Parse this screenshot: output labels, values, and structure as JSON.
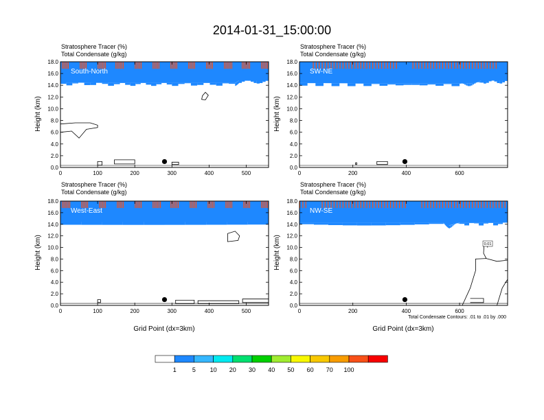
{
  "title": "2014-01-31_15:00:00",
  "panel_header_line1": "Stratosphere Tracer   (%)",
  "panel_header_line2": "Total Condensate   (g/kg)",
  "ylabel": "Height (km)",
  "xlabel": "Grid Point (dx=3km)",
  "contour_note": "Total Condensate Contours: .01 to .01 by .000",
  "contour_label": "0.01",
  "colors": {
    "palette": [
      "#ffffff",
      "#1e88ff",
      "#35b7ff",
      "#00eaf0",
      "#00e070",
      "#00d000",
      "#a0ec30",
      "#f8f800",
      "#f8c800",
      "#f89c00",
      "#f85018",
      "#f80000"
    ],
    "outline": "#000000",
    "background": "#ffffff"
  },
  "colorbar": {
    "levels": [
      "1",
      "5",
      "10",
      "20",
      "30",
      "40",
      "50",
      "60",
      "70",
      "100"
    ]
  },
  "chart_data": [
    {
      "type": "heatmap",
      "name": "South-North",
      "xlim": [
        0,
        560
      ],
      "ylim": [
        0.0,
        18.0
      ],
      "xticks": [
        "0",
        "100",
        "200",
        "300",
        "400",
        "500"
      ],
      "yticks": [
        "0.0",
        "2.0",
        "4.0",
        "6.0",
        "8.0",
        "10.0",
        "12.0",
        "14.0",
        "16.0",
        "18.0"
      ],
      "tracer_boundary_km": [
        [
          0,
          15.7
        ],
        [
          160,
          15.6
        ],
        [
          300,
          15.6
        ],
        [
          470,
          15.6
        ],
        [
          480,
          16.0
        ],
        [
          560,
          16.0
        ]
      ],
      "marker": {
        "x": 280,
        "y": 1.0
      },
      "contours": [
        {
          "points": [
            [
              0,
              6.0
            ],
            [
              30,
              6.2
            ],
            [
              50,
              5.0
            ],
            [
              70,
              6.5
            ],
            [
              100,
              6.8
            ],
            [
              100,
              7.2
            ],
            [
              80,
              7.6
            ],
            [
              40,
              7.6
            ],
            [
              0,
              7.4
            ]
          ]
        },
        {
          "points": [
            [
              380,
              11.6
            ],
            [
              390,
              11.5
            ],
            [
              398,
              12.3
            ],
            [
              390,
              12.8
            ],
            [
              382,
              12.2
            ]
          ]
        },
        {
          "points": [
            [
              100,
              0.4
            ],
            [
              112,
              0.4
            ],
            [
              112,
              1.0
            ],
            [
              100,
              1.0
            ]
          ]
        },
        {
          "points": [
            [
              145,
              0.6
            ],
            [
              200,
              0.6
            ],
            [
              200,
              1.3
            ],
            [
              145,
              1.3
            ]
          ]
        },
        {
          "points": [
            [
              300,
              0.5
            ],
            [
              318,
              0.5
            ],
            [
              318,
              0.9
            ],
            [
              300,
              0.9
            ]
          ]
        }
      ]
    },
    {
      "type": "heatmap",
      "name": "SW-NE",
      "xlim": [
        0,
        780
      ],
      "ylim": [
        0.0,
        18.0
      ],
      "xticks": [
        "0",
        "200",
        "400",
        "600"
      ],
      "yticks": [
        "0.0",
        "2.0",
        "4.0",
        "6.0",
        "8.0",
        "10.0",
        "12.0",
        "14.0",
        "16.0",
        "18.0"
      ],
      "tracer_boundary_km": [
        [
          0,
          15.6
        ],
        [
          300,
          15.5
        ],
        [
          600,
          15.5
        ],
        [
          660,
          15.6
        ],
        [
          680,
          16.0
        ],
        [
          780,
          16.0
        ]
      ],
      "marker": {
        "x": 395,
        "y": 1.0
      },
      "contours": [
        {
          "points": [
            [
              290,
              0.5
            ],
            [
              330,
              0.5
            ],
            [
              330,
              1.0
            ],
            [
              290,
              1.0
            ]
          ]
        },
        {
          "points": [
            [
              210,
              0.5
            ],
            [
              215,
              0.5
            ],
            [
              215,
              0.8
            ],
            [
              210,
              0.8
            ]
          ]
        }
      ]
    },
    {
      "type": "heatmap",
      "name": "West-East",
      "xlim": [
        0,
        560
      ],
      "ylim": [
        0.0,
        18.0
      ],
      "xticks": [
        "0",
        "100",
        "200",
        "300",
        "400",
        "500"
      ],
      "yticks": [
        "0.0",
        "2.0",
        "4.0",
        "6.0",
        "8.0",
        "10.0",
        "12.0",
        "14.0",
        "16.0",
        "18.0"
      ],
      "tracer_boundary_km": [
        [
          0,
          15.6
        ],
        [
          560,
          15.6
        ]
      ],
      "marker": {
        "x": 280,
        "y": 1.0
      },
      "contours": [
        {
          "points": [
            [
              450,
              11.0
            ],
            [
              478,
              11.2
            ],
            [
              482,
              12.0
            ],
            [
              470,
              12.8
            ],
            [
              450,
              12.4
            ]
          ]
        },
        {
          "points": [
            [
              100,
              0.5
            ],
            [
              108,
              0.5
            ],
            [
              108,
              1.0
            ],
            [
              100,
              1.0
            ]
          ]
        },
        {
          "points": [
            [
              310,
              0.3
            ],
            [
              360,
              0.3
            ],
            [
              360,
              0.9
            ],
            [
              310,
              0.9
            ]
          ]
        },
        {
          "points": [
            [
              370,
              0.3
            ],
            [
              480,
              0.3
            ],
            [
              480,
              0.8
            ],
            [
              370,
              0.8
            ]
          ]
        },
        {
          "points": [
            [
              490,
              0.5
            ],
            [
              560,
              0.5
            ],
            [
              560,
              1.1
            ],
            [
              490,
              1.1
            ]
          ]
        }
      ]
    },
    {
      "type": "heatmap",
      "name": "NW-SE",
      "xlim": [
        0,
        780
      ],
      "ylim": [
        0.0,
        18.0
      ],
      "xticks": [
        "0",
        "200",
        "400",
        "600"
      ],
      "yticks": [
        "0.0",
        "2.0",
        "4.0",
        "6.0",
        "8.0",
        "10.0",
        "12.0",
        "14.0",
        "16.0",
        "18.0"
      ],
      "tracer_boundary_km": [
        [
          0,
          15.5
        ],
        [
          540,
          15.5
        ],
        [
          560,
          15.0
        ],
        [
          600,
          15.5
        ],
        [
          780,
          15.5
        ]
      ],
      "marker": {
        "x": 395,
        "y": 1.0
      },
      "contours": [
        {
          "points": [
            [
              610,
              0
            ],
            [
              640,
              3.0
            ],
            [
              660,
              6.0
            ],
            [
              660,
              8.0
            ],
            [
              700,
              8.1
            ],
            [
              740,
              7.6
            ],
            [
              780,
              7.8
            ]
          ]
        },
        {
          "points": [
            [
              740,
              0
            ],
            [
              760,
              3.0
            ],
            [
              780,
              4.5
            ]
          ]
        },
        {
          "points": [
            [
              700,
              8.1
            ],
            [
              690,
              9.0
            ],
            [
              692,
              10.5
            ],
            [
              700,
              11.0
            ],
            [
              705,
              10.0
            ]
          ]
        },
        {
          "points": [
            [
              640,
              0.5
            ],
            [
              690,
              0.5
            ],
            [
              690,
              1.2
            ],
            [
              640,
              1.2
            ]
          ]
        }
      ]
    }
  ]
}
